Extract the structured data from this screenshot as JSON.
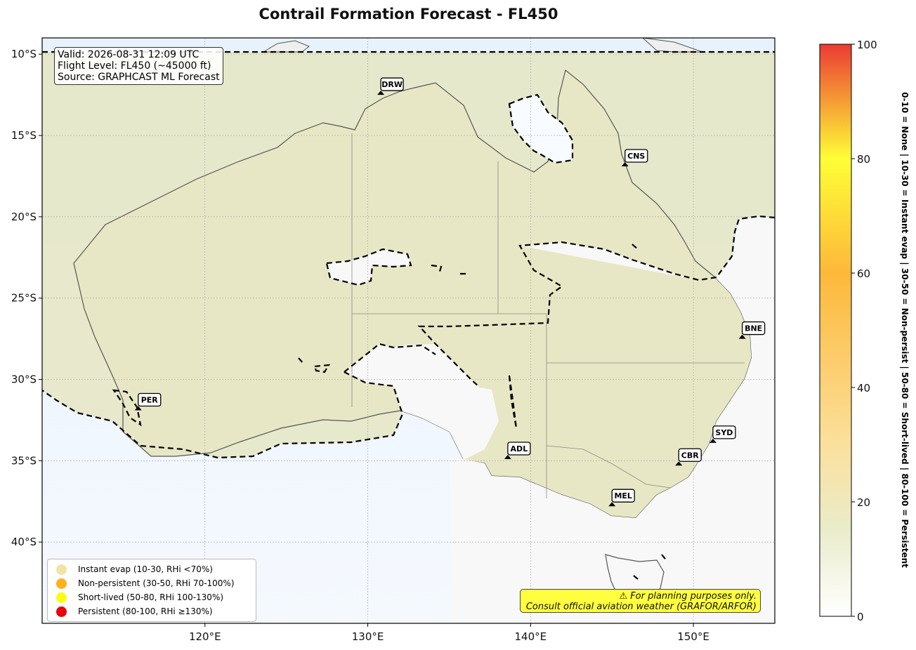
{
  "title": "Contrail Formation Forecast - FL450",
  "info": {
    "valid": "Valid: 2026-08-31 12:09 UTC",
    "flight_level": "Flight Level: FL450 (~45000 ft)",
    "source": "Source: GRAPHCAST ML Forecast"
  },
  "map": {
    "lon_range": [
      110,
      155
    ],
    "lat_range": [
      -45,
      -9
    ],
    "lon_ticks": [
      120,
      130,
      140,
      150
    ],
    "lon_tick_labels": [
      "120°E",
      "130°E",
      "140°E",
      "150°E"
    ],
    "lat_ticks": [
      -10,
      -15,
      -20,
      -25,
      -30,
      -35,
      -40
    ],
    "lat_tick_labels": [
      "10°S",
      "15°S",
      "20°S",
      "25°S",
      "30°S",
      "35°S",
      "40°S"
    ],
    "colors": {
      "ocean_low": "#f5f9fe",
      "ocean_north": "#e8f2fd",
      "land_low": "#eae9c8",
      "land_none": "#f8f8f8",
      "coast": "#555555",
      "contour": "#000000"
    }
  },
  "cities": [
    {
      "code": "DRW",
      "lon": 130.8,
      "lat": -12.5
    },
    {
      "code": "CNS",
      "lon": 145.8,
      "lat": -16.9
    },
    {
      "code": "BNE",
      "lon": 153.0,
      "lat": -27.5
    },
    {
      "code": "PER",
      "lon": 115.9,
      "lat": -31.9
    },
    {
      "code": "SYD",
      "lon": 151.2,
      "lat": -33.9
    },
    {
      "code": "ADL",
      "lon": 138.6,
      "lat": -34.9
    },
    {
      "code": "CBR",
      "lon": 149.1,
      "lat": -35.3
    },
    {
      "code": "MEL",
      "lon": 145.0,
      "lat": -37.8
    }
  ],
  "legend": [
    {
      "label": "Instant evap (10-30, RHi <70%)",
      "color": "#f1e3a2"
    },
    {
      "label": "Non-persistent (30-50, RHi 70-100%)",
      "color": "#ffb01a"
    },
    {
      "label": "Short-lived (50-80, RHi 100-130%)",
      "color": "#fcfc12"
    },
    {
      "label": "Persistent (80-100, RHi ≥130%)",
      "color": "#e8060a"
    }
  ],
  "warning": {
    "line1": "⚠ For planning purposes only.",
    "line2": "Consult official aviation weather (GRAFOR/ARFOR)"
  },
  "colorbar": {
    "min": 0,
    "max": 100,
    "ticks": [
      0,
      20,
      40,
      60,
      80,
      100
    ],
    "stops": [
      {
        "v": 0,
        "c": "#ffffff"
      },
      {
        "v": 15,
        "c": "#eaeccb"
      },
      {
        "v": 30,
        "c": "#fbe09c"
      },
      {
        "v": 60,
        "c": "#fdb83a"
      },
      {
        "v": 80,
        "c": "#fefe36"
      },
      {
        "v": 100,
        "c": "#ec3b34"
      }
    ],
    "label": "0-10 = None  |  10-30 = Instant evap  |  30-50 = Non-persist  |  50-80 = Short-lived  |  80-100 = Persistent"
  }
}
